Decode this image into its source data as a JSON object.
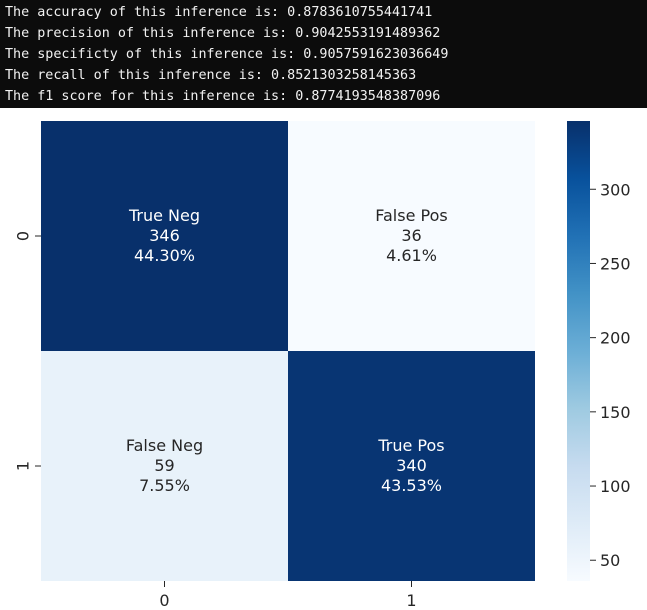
{
  "output_lines": [
    "The accuracy of this inference is: 0.8783610755441741",
    "The precision of this inference is: 0.9042553191489362",
    "The specificty of this inference is: 0.9057591623036649",
    "The recall of this inference is: 0.8521303258145363",
    "The f1 score for this inference is: 0.8774193548387096"
  ],
  "chart_data": {
    "type": "heatmap",
    "colormap": "Blues",
    "rows": [
      "0",
      "1"
    ],
    "columns": [
      "0",
      "1"
    ],
    "cells": [
      [
        {
          "value": 346,
          "name": "True Neg",
          "count": "346",
          "percent": "44.30%"
        },
        {
          "value": 36,
          "name": "False Pos",
          "count": "36",
          "percent": "4.61%"
        }
      ],
      [
        {
          "value": 59,
          "name": "False Neg",
          "count": "59",
          "percent": "7.55%"
        },
        {
          "value": 340,
          "name": "True Pos",
          "count": "340",
          "percent": "43.53%"
        }
      ]
    ],
    "colorbar": {
      "range": [
        36,
        346
      ],
      "ticks": [
        50,
        100,
        150,
        200,
        250,
        300
      ],
      "tick_labels": [
        "50",
        "100",
        "150",
        "200",
        "250",
        "300"
      ]
    }
  }
}
